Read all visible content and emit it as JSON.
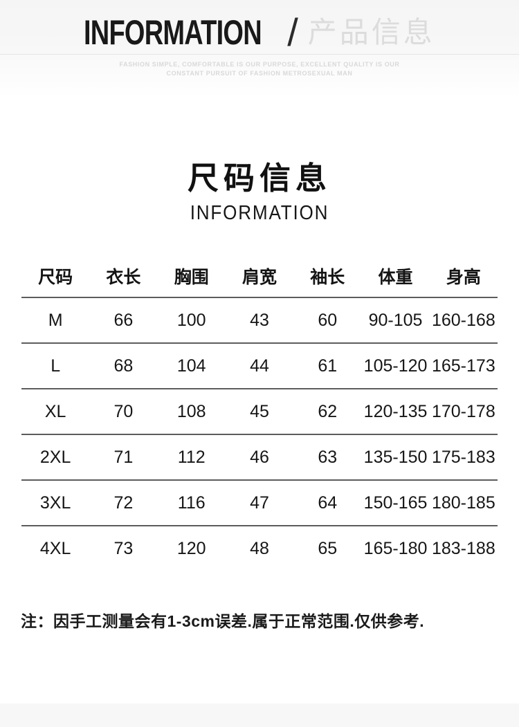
{
  "banner": {
    "title_en": "INFORMATION",
    "slash": "/",
    "title_zh": "产品信息",
    "tagline_line1": "FASHION SIMPLE, COMFORTABLE IS OUR PURPOSE, EXCELLENT QUALITY IS OUR",
    "tagline_line2": "CONSTANT PURSUIT OF FASHION METROSEXUAL MAN"
  },
  "section": {
    "title_zh": "尺码信息",
    "subtitle_en": "INFORMATION"
  },
  "size_table": {
    "headers": [
      "尺码",
      "衣长",
      "胸围",
      "肩宽",
      "袖长",
      "体重",
      "身高"
    ],
    "rows": [
      [
        "M",
        "66",
        "100",
        "43",
        "60",
        "90-105",
        "160-168"
      ],
      [
        "L",
        "68",
        "104",
        "44",
        "61",
        "105-120",
        "165-173"
      ],
      [
        "XL",
        "70",
        "108",
        "45",
        "62",
        "120-135",
        "170-178"
      ],
      [
        "2XL",
        "71",
        "112",
        "46",
        "63",
        "135-150",
        "175-183"
      ],
      [
        "3XL",
        "72",
        "116",
        "47",
        "64",
        "150-165",
        "180-185"
      ],
      [
        "4XL",
        "73",
        "120",
        "48",
        "65",
        "165-180",
        "183-188"
      ]
    ]
  },
  "note": {
    "text": "注：因手工测量会有1-3cm误差.属于正常范围.仅供参考."
  },
  "colors": {
    "text": "#141414",
    "banner_zh": "#dcdcdc",
    "tagline": "#d9d9d9",
    "divider": "#e4e4e4",
    "table_line": "#5c5c5c"
  }
}
